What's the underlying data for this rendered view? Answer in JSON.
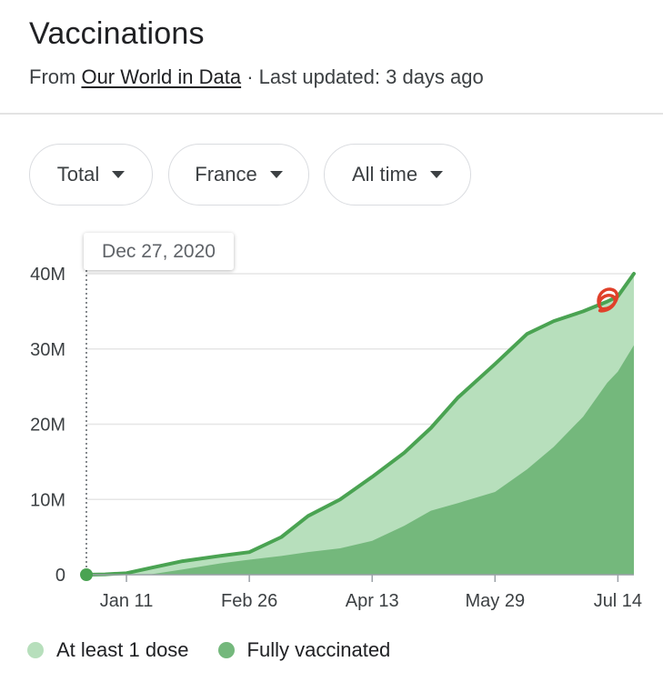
{
  "header": {
    "title": "Vaccinations",
    "source_prefix": "From ",
    "source_link": "Our World in Data",
    "updated": " · Last updated: 3 days ago"
  },
  "filters": {
    "metric": "Total",
    "country": "France",
    "range": "All time"
  },
  "tooltip": {
    "date": "Dec 27, 2020"
  },
  "colors": {
    "light": "#b7dfbc",
    "dark": "#74b87c",
    "line": "#4aa352",
    "annotation": "#e0402a"
  },
  "chart_data": {
    "type": "area",
    "title": "",
    "xlabel": "",
    "ylabel": "",
    "x_ticks": [
      "Jan 11",
      "Feb 26",
      "Apr 13",
      "May 29",
      "Jul 14"
    ],
    "y_ticks": [
      "0",
      "10M",
      "20M",
      "30M",
      "40M"
    ],
    "ylim": [
      0,
      40000000
    ],
    "xlim": [
      "2020-12-27",
      "2021-07-20"
    ],
    "grid": true,
    "legend_position": "bottom",
    "x": [
      "2020-12-27",
      "2021-01-03",
      "2021-01-11",
      "2021-01-20",
      "2021-02-01",
      "2021-02-15",
      "2021-02-26",
      "2021-03-10",
      "2021-03-20",
      "2021-04-01",
      "2021-04-13",
      "2021-04-25",
      "2021-05-05",
      "2021-05-15",
      "2021-05-29",
      "2021-06-10",
      "2021-06-20",
      "2021-07-01",
      "2021-07-10",
      "2021-07-14",
      "2021-07-20"
    ],
    "series": [
      {
        "name": "At least 1 dose",
        "values": [
          0,
          50000,
          200000,
          900000,
          1800000,
          2500000,
          3000000,
          5000000,
          7800000,
          10000000,
          13000000,
          16200000,
          19500000,
          23500000,
          28000000,
          32000000,
          33700000,
          35000000,
          36300000,
          37000000,
          40000000
        ]
      },
      {
        "name": "Fully vaccinated",
        "values": [
          0,
          0,
          0,
          50000,
          700000,
          1500000,
          2000000,
          2500000,
          3000000,
          3500000,
          4500000,
          6500000,
          8500000,
          9500000,
          11000000,
          14000000,
          17000000,
          21000000,
          25500000,
          27000000,
          30500000
        ]
      }
    ]
  }
}
